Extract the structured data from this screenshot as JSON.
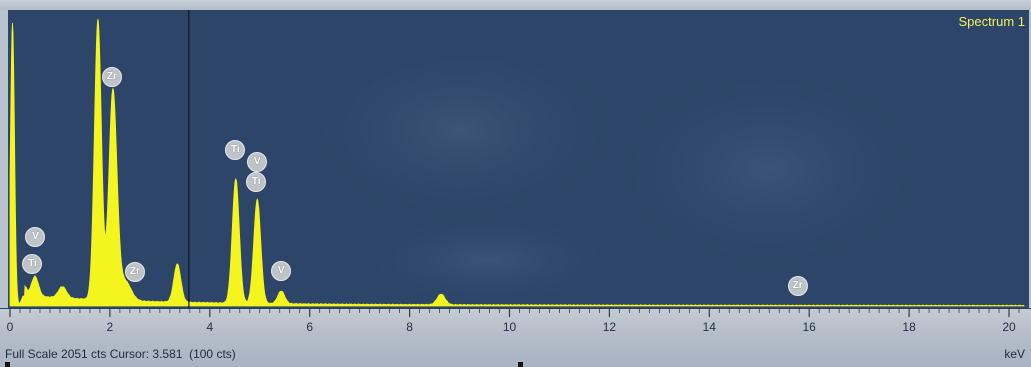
{
  "spectrum_label": "Spectrum 1",
  "status": {
    "text": "Full Scale 2051 cts Cursor: 3.581  (100 cts)",
    "unit": "keV"
  },
  "colors": {
    "background": "#2c4568",
    "spectrum": "#f4f41f",
    "label": "#f2f25a",
    "marker": "#bec3c8"
  },
  "chart_data": {
    "type": "area",
    "title": "Spectrum 1",
    "xlabel": "keV",
    "ylabel": "",
    "xlim": [
      0,
      20.3
    ],
    "ylim": [
      0,
      2051
    ],
    "full_scale_counts": 2051,
    "cursor_keV": 3.581,
    "cursor_counts": 100,
    "x_ticks": [
      0,
      2,
      4,
      6,
      8,
      10,
      12,
      14,
      16,
      18,
      20
    ],
    "peaks": [
      {
        "keV": 0.05,
        "counts": 2000,
        "width": 0.04
      },
      {
        "keV": 0.28,
        "counts": 70,
        "width": 0.05
      },
      {
        "keV": 0.5,
        "counts": 140,
        "width": 0.07
      },
      {
        "keV": 1.05,
        "counts": 80,
        "width": 0.08
      },
      {
        "keV": 1.76,
        "counts": 1980,
        "width": 0.07
      },
      {
        "keV": 2.06,
        "counts": 1480,
        "width": 0.08
      },
      {
        "keV": 2.3,
        "counts": 140,
        "width": 0.12
      },
      {
        "keV": 3.35,
        "counts": 270,
        "width": 0.07
      },
      {
        "keV": 4.52,
        "counts": 880,
        "width": 0.07
      },
      {
        "keV": 4.95,
        "counts": 735,
        "width": 0.07
      },
      {
        "keV": 5.43,
        "counts": 90,
        "width": 0.07
      },
      {
        "keV": 8.63,
        "counts": 75,
        "width": 0.08
      }
    ],
    "element_markers": [
      {
        "element": "V",
        "keV": 0.51,
        "counts": 490
      },
      {
        "element": "Ti",
        "keV": 0.45,
        "counts": 300
      },
      {
        "element": "Zr",
        "keV": 2.04,
        "counts": 1620
      },
      {
        "element": "Zr",
        "keV": 2.5,
        "counts": 240
      },
      {
        "element": "Ti",
        "keV": 4.51,
        "counts": 1100
      },
      {
        "element": "V",
        "keV": 4.95,
        "counts": 1020
      },
      {
        "element": "Ti",
        "keV": 4.93,
        "counts": 880
      },
      {
        "element": "V",
        "keV": 5.43,
        "counts": 250
      },
      {
        "element": "Zr",
        "keV": 15.77,
        "counts": 140
      }
    ]
  }
}
